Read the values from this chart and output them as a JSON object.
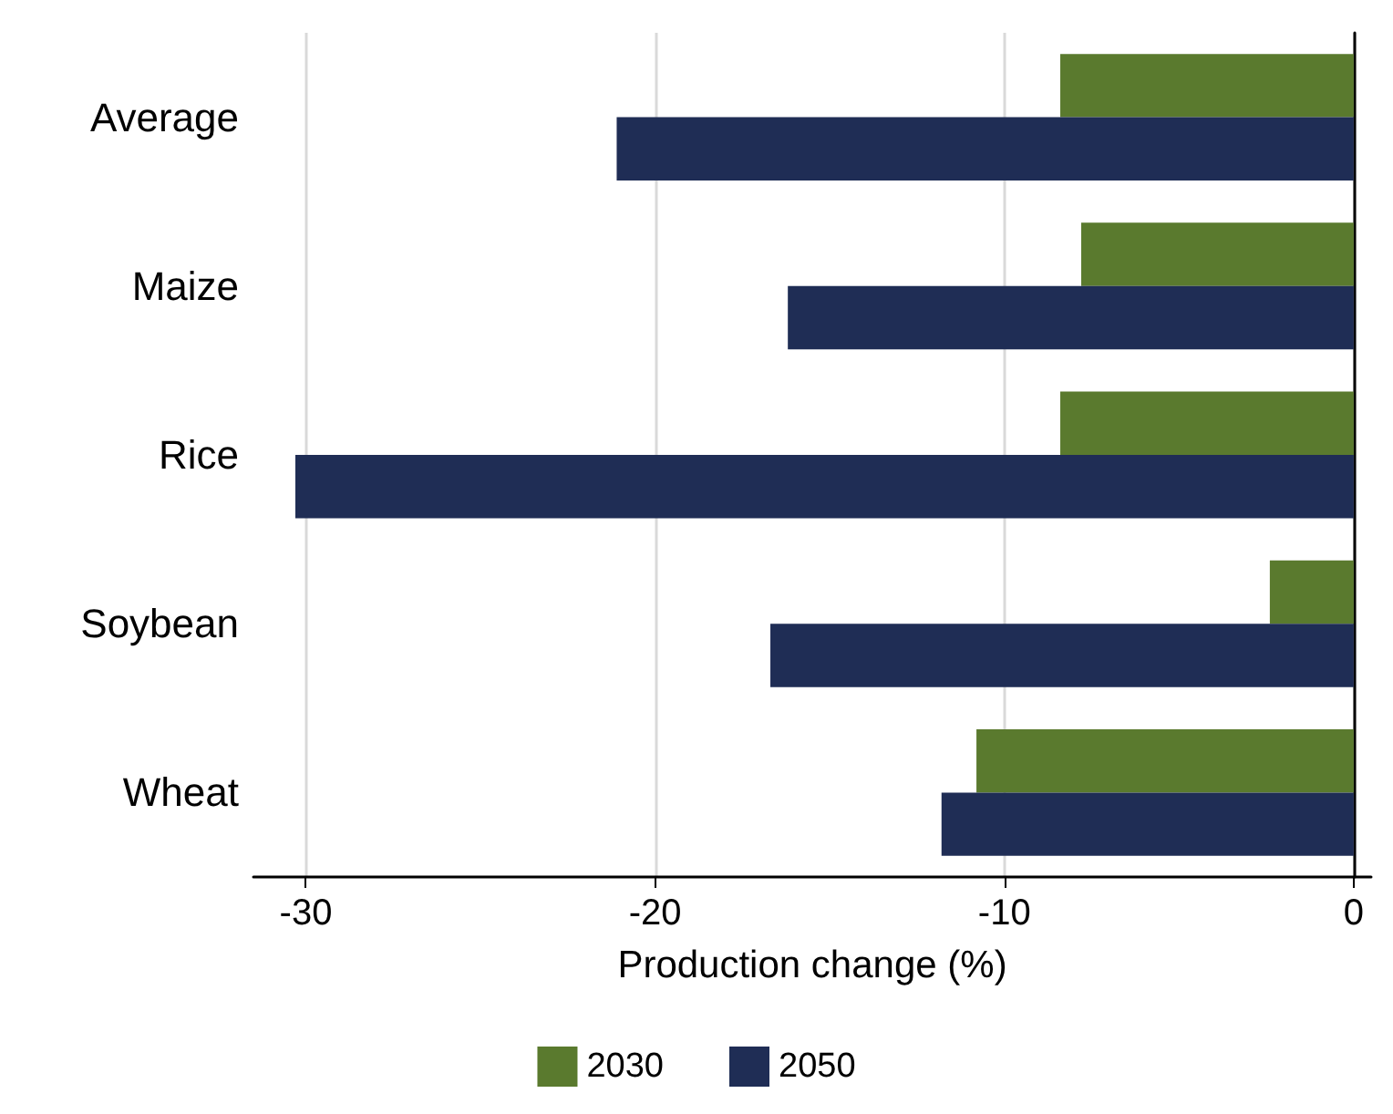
{
  "chart_data": {
    "type": "bar",
    "orientation": "horizontal",
    "xlabel": "Production change (%)",
    "categories": [
      "Average",
      "Maize",
      "Rice",
      "Soybean",
      "Wheat"
    ],
    "series": [
      {
        "name": "2030",
        "color": "#5a7a2e",
        "values": [
          -8.4,
          -7.8,
          -8.4,
          -2.4,
          -10.8
        ]
      },
      {
        "name": "2050",
        "color": "#1f2d55",
        "values": [
          -21.1,
          -16.2,
          -30.3,
          -16.7,
          -11.8
        ]
      }
    ],
    "xlim": [
      -31.5,
      0.5
    ],
    "xticks": [
      -30,
      -20,
      -10,
      0
    ],
    "grid": "x",
    "legend": "bottom"
  }
}
